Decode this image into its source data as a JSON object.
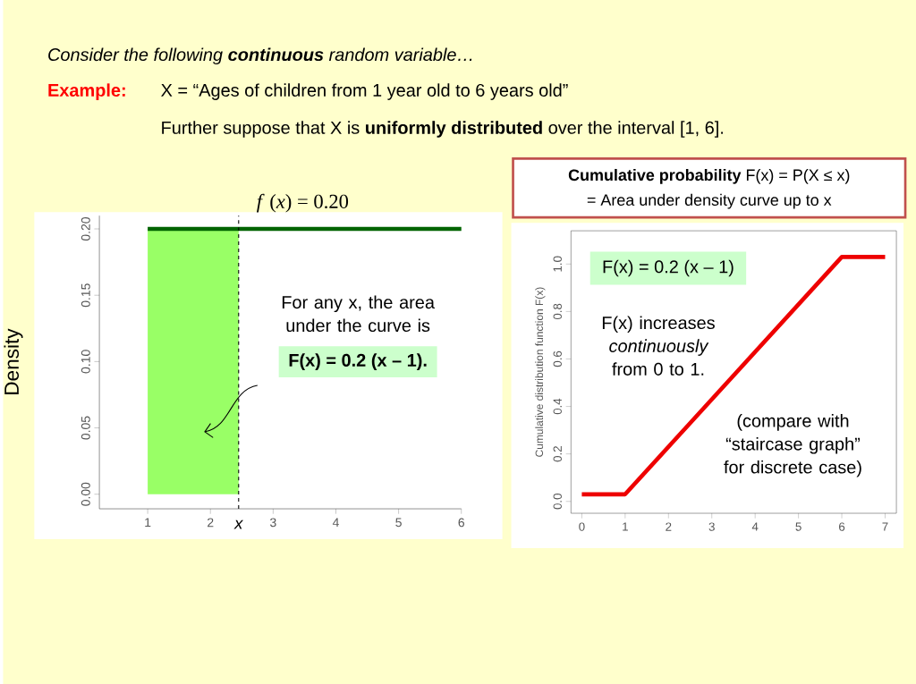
{
  "chart_data": [
    {
      "type": "line",
      "title": "*f* (*x*) = 0.20",
      "ylabel": "Density",
      "series": [
        {
          "type": "area",
          "x": [
            1,
            2.45
          ],
          "values": [
            0.2,
            0.2
          ],
          "color": "#99ff66"
        },
        {
          "type": "line",
          "x": [
            1,
            6
          ],
          "values": [
            0.2,
            0.2
          ],
          "color": "#006400"
        }
      ],
      "xlim": [
        0.23,
        6
      ],
      "ylim": [
        -0.011,
        0.21
      ],
      "xticks": [
        1,
        2,
        3,
        4,
        5,
        6
      ],
      "yticks": [
        {
          "value": 0,
          "label": "0.00"
        },
        {
          "value": 0.05,
          "label": "0.05"
        },
        {
          "value": 0.1,
          "label": "0.10"
        },
        {
          "value": 0.15,
          "label": "0.15"
        },
        {
          "value": 0.2,
          "label": "0.20"
        }
      ],
      "ref_lines": [
        {
          "axis": "x",
          "value": 2.45,
          "label": "x",
          "line_style": "dashed"
        }
      ],
      "annotations": [
        "Consider the following **continuous** random variable…",
        "Example:",
        "X = “Ages of children from 1 year old to 6 years old”",
        "Further suppose that X is **uniformly distributed** over the interval [1, 6].",
        "For any x, the area under the curve is",
        "F(x) = 0.2 (x – 1)."
      ]
    },
    {
      "type": "line",
      "title": "**Cumulative probability** F(x) = P(X ≤ x)",
      "subtitle": "= Area under density curve up to x",
      "ylabel": "Cumulative distribution function F(x)",
      "x": [
        0,
        1,
        6,
        7
      ],
      "values": [
        0.03,
        0.03,
        1.03,
        1.03
      ],
      "color": "#ee0000",
      "xlim": [
        -0.25,
        7.26
      ],
      "ylim": [
        -0.05,
        1.14
      ],
      "xticks": [
        0,
        1,
        2,
        3,
        4,
        5,
        6,
        7
      ],
      "yticks": [
        {
          "value": 0,
          "label": "0.0"
        },
        {
          "value": 0.2,
          "label": "0.2"
        },
        {
          "value": 0.4,
          "label": "0.4"
        },
        {
          "value": 0.6,
          "label": "0.6"
        },
        {
          "value": 0.8,
          "label": "0.8"
        },
        {
          "value": 1,
          "label": "1.0"
        }
      ],
      "annotations": [
        "F(x) = 0.2 (x – 1)",
        "F(x) increases *continuously* from 0 to 1.",
        "(compare with “staircase graph” for discrete case)"
      ]
    }
  ]
}
